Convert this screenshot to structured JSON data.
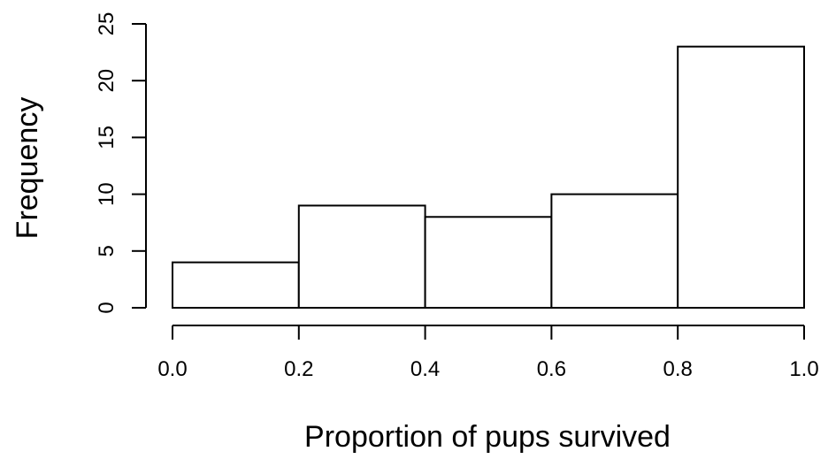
{
  "chart_data": {
    "type": "bar",
    "subtype": "histogram",
    "title": "",
    "xlabel": "Proportion of pups survived",
    "ylabel": "Frequency",
    "bins": [
      {
        "from": 0.0,
        "to": 0.2,
        "value": 4
      },
      {
        "from": 0.2,
        "to": 0.4,
        "value": 9
      },
      {
        "from": 0.4,
        "to": 0.6,
        "value": 8
      },
      {
        "from": 0.6,
        "to": 0.8,
        "value": 10
      },
      {
        "from": 0.8,
        "to": 1.0,
        "value": 23
      }
    ],
    "xlim": [
      0.0,
      1.0
    ],
    "ylim": [
      0,
      25
    ],
    "x_ticks": [
      "0.0",
      "0.2",
      "0.4",
      "0.6",
      "0.8",
      "1.0"
    ],
    "y_ticks": [
      "0",
      "5",
      "10",
      "15",
      "20",
      "25"
    ],
    "bar_fill": "#ffffff",
    "bar_stroke": "#000000",
    "grid": false,
    "legend": "none"
  }
}
